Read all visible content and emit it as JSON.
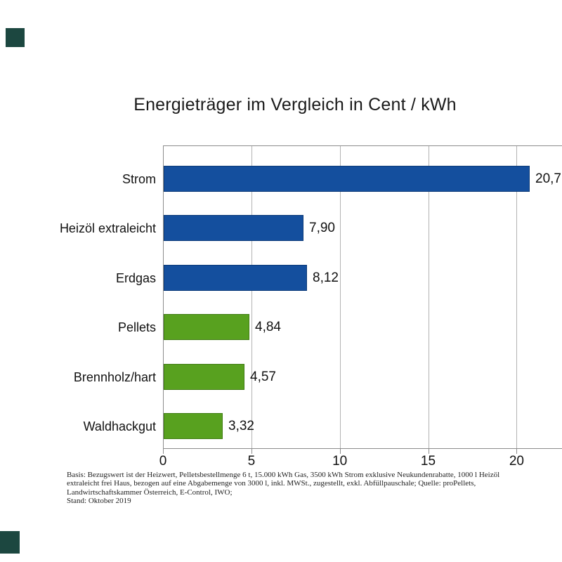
{
  "chart_data": {
    "type": "bar",
    "orientation": "horizontal",
    "title": "Energieträger im Vergleich in Cent / kWh",
    "categories": [
      "Strom",
      "Heizöl extraleicht",
      "Erdgas",
      "Pellets",
      "Brennholz/hart",
      "Waldhackgut"
    ],
    "values": [
      20.7,
      7.9,
      8.12,
      4.84,
      4.57,
      3.32
    ],
    "value_labels": [
      "20,7",
      "7,90",
      "8,12",
      "4,84",
      "4,57",
      "3,32"
    ],
    "bar_colors": [
      "#144f9e",
      "#144f9e",
      "#144f9e",
      "#58a11f",
      "#58a11f",
      "#58a11f"
    ],
    "bar_border_colors": [
      "#0c3a78",
      "#0c3a78",
      "#0c3a78",
      "#417d15",
      "#417d15",
      "#417d15"
    ],
    "x_ticks": [
      0,
      5,
      10,
      15,
      20
    ],
    "x_tick_labels": [
      "0",
      "5",
      "10",
      "15",
      "20"
    ],
    "xlim": [
      0,
      22.6
    ],
    "grid": true,
    "legend": false,
    "xlabel": "",
    "ylabel": ""
  },
  "footnote": {
    "lines": [
      "Basis: Bezugswert ist der Heizwert, Pelletsbestellmenge 6 t, 15.000 kWh Gas, 3500 kWh Strom exklusive Neukundenrabatte, 1000 l Heizöl",
      "extraleicht frei Haus, bezogen auf eine Abgabemenge von 3000 l, inkl. MWSt., zugestellt, exkl. Abfüllpauschale; Quelle: proPellets,",
      "Landwirtschaftskammer Österreich, E-Control, IWO;",
      "Stand: Oktober 2019"
    ]
  },
  "colors": {
    "blue_bar": "#144f9e",
    "green_bar": "#58a11f",
    "grid_line": "#b3b3b3",
    "axis_line": "#8c8c8c",
    "text": "#111111",
    "corner_marker": "#1c4740"
  }
}
